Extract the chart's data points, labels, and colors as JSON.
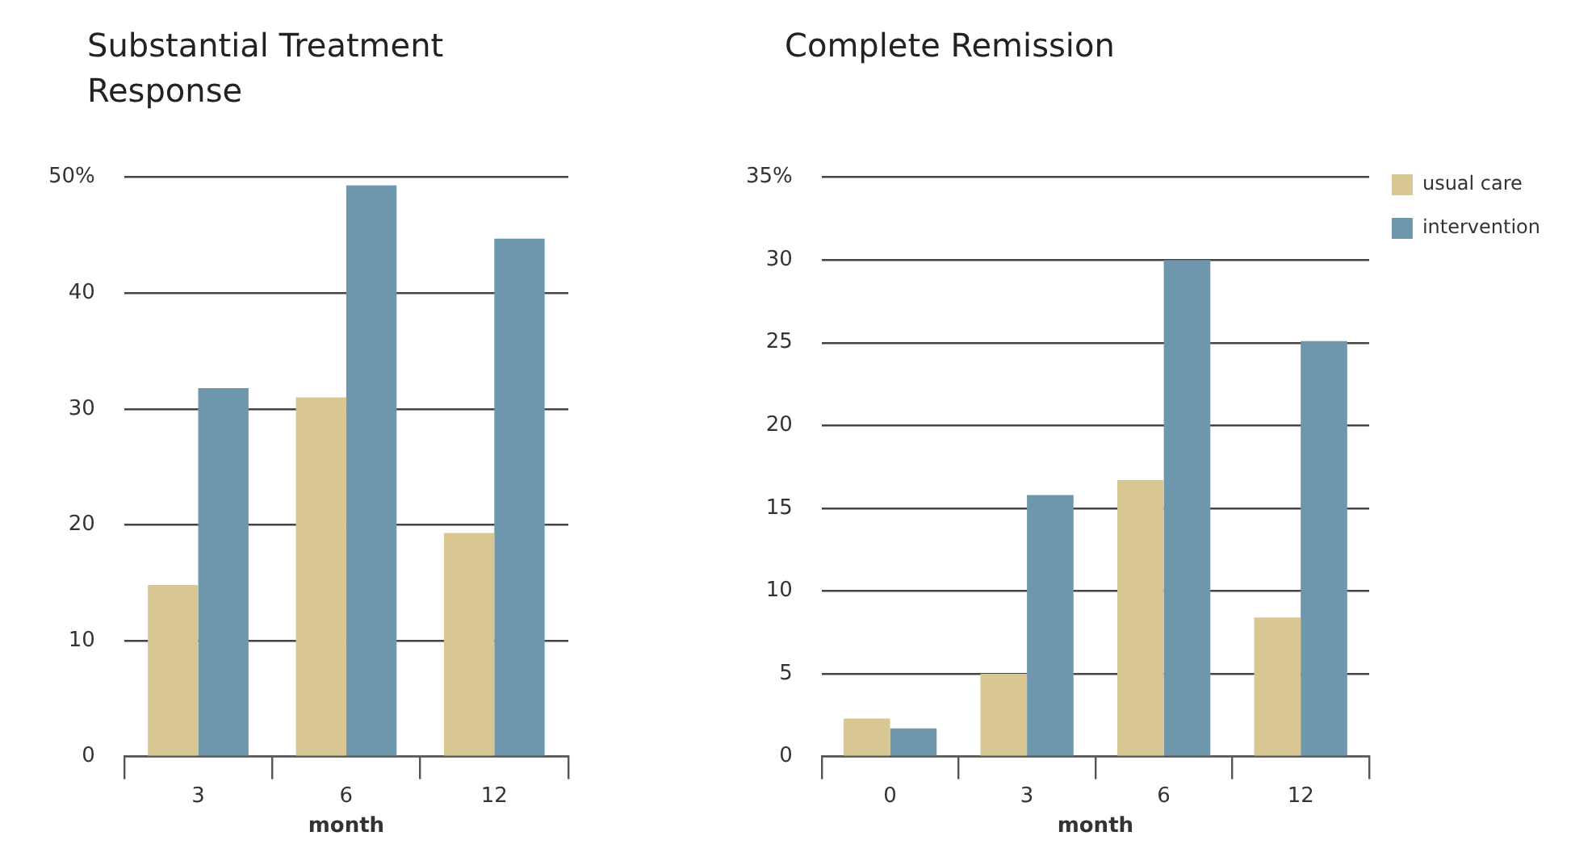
{
  "chart_data": [
    {
      "type": "bar",
      "title": "Substantial Treatment Response",
      "xlabel": "month",
      "categories": [
        "3",
        "6",
        "12"
      ],
      "series": [
        {
          "color": "#d9c793",
          "values": [
            14.8,
            31.0,
            19.3
          ]
        },
        {
          "color": "#6e97ad",
          "values": [
            31.8,
            49.3,
            44.7
          ]
        }
      ],
      "ylim": [
        0,
        50
      ],
      "yticks": [
        0,
        10,
        20,
        30,
        40,
        {
          "value": 50,
          "label": "50%"
        }
      ],
      "grid": "y",
      "legend": false
    },
    {
      "type": "bar",
      "title": "Complete Remission",
      "xlabel": "month",
      "categories": [
        "0",
        "3",
        "6",
        "12"
      ],
      "series": [
        {
          "name": "usual care",
          "color": "#d9c793",
          "values": [
            2.3,
            5.0,
            16.7,
            8.4
          ]
        },
        {
          "name": "intervention",
          "color": "#6e97ad",
          "values": [
            1.7,
            15.8,
            30.0,
            25.1
          ]
        }
      ],
      "ylim": [
        0,
        35
      ],
      "yticks": [
        0,
        5,
        10,
        15,
        20,
        25,
        30,
        {
          "value": 35,
          "label": "35%"
        }
      ],
      "grid": "y",
      "legend": "top right"
    }
  ]
}
